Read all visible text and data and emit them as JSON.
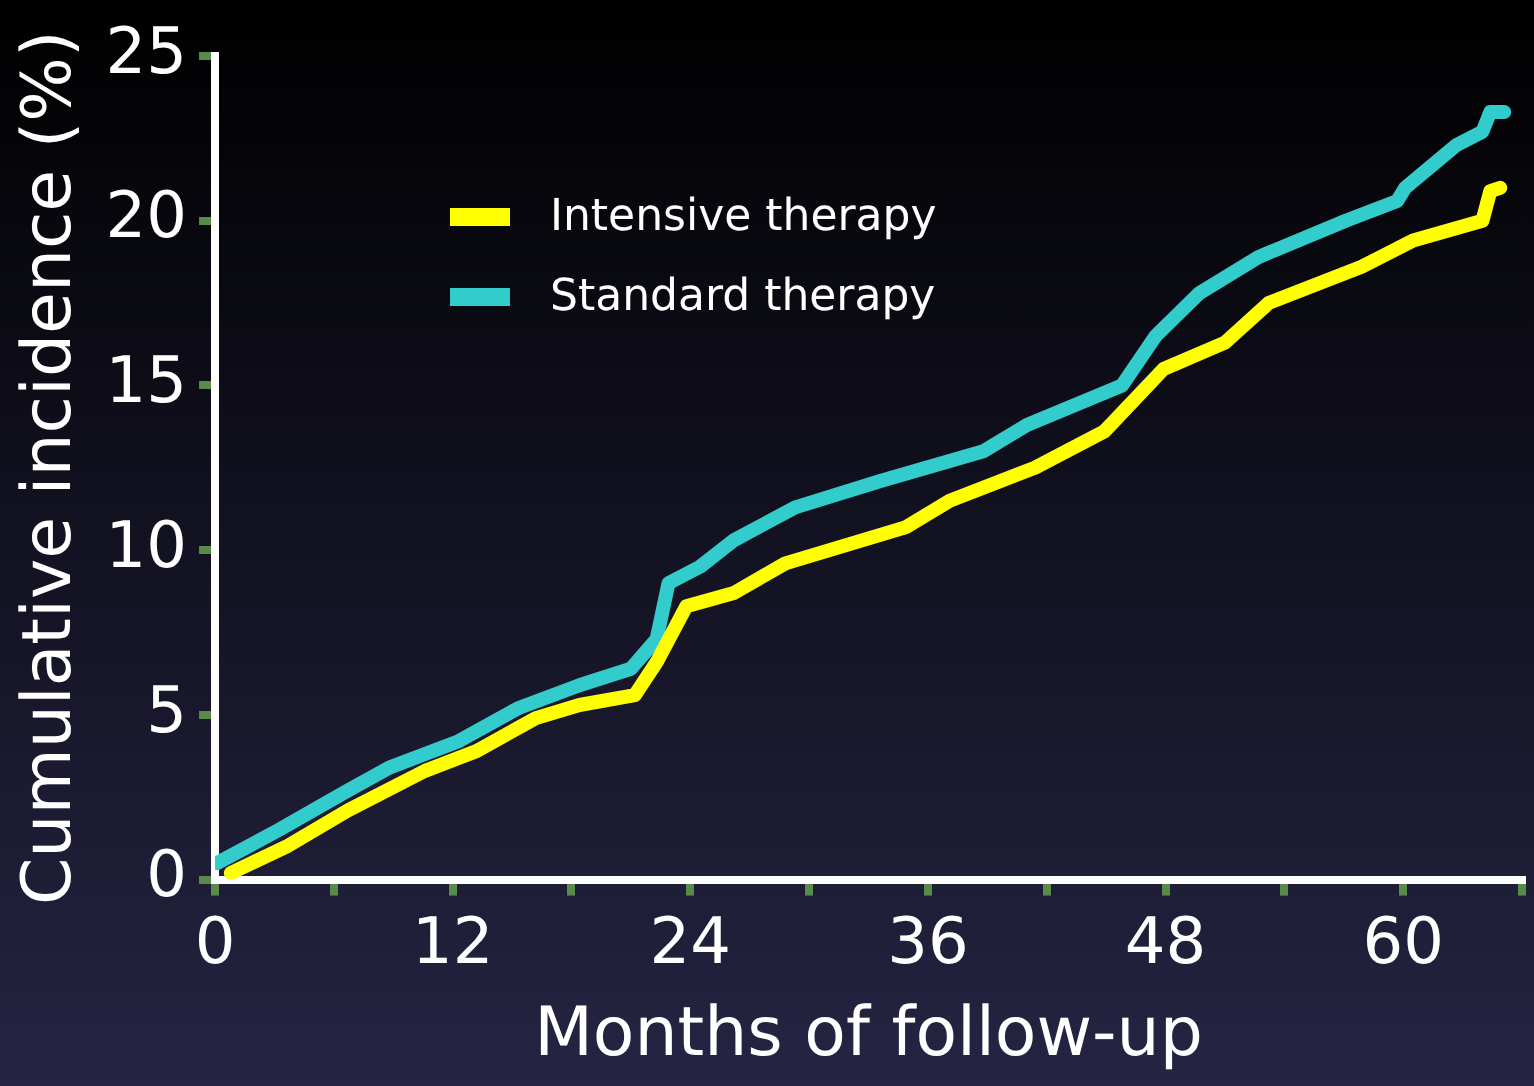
{
  "chart_data": {
    "type": "line",
    "xlabel": "Months of follow-up",
    "ylabel": "Cumulative incidence (%)",
    "xlim": [
      0,
      66
    ],
    "xticks": [
      0,
      {
        "value": 6,
        "label": null
      },
      12,
      {
        "value": 18,
        "label": null
      },
      24,
      {
        "value": 30,
        "label": null
      },
      36,
      {
        "value": 42,
        "label": null
      },
      48,
      {
        "value": 54,
        "label": null
      },
      60,
      {
        "value": 66,
        "label": null
      }
    ],
    "ylim": [
      0,
      25
    ],
    "yticks": [
      0,
      5,
      10,
      15,
      20,
      25
    ],
    "grid": false,
    "legend": "top left",
    "marker": "none",
    "line_style": "solid",
    "series": [
      {
        "name": "Intensive therapy",
        "color": "#ffff00",
        "x": [
          0.8,
          3.6,
          6.7,
          10.6,
          13.2,
          16.2,
          18.4,
          21.2,
          22.3,
          23.8,
          26.2,
          28.8,
          34.9,
          37.1,
          41.4,
          44.9,
          47.9,
          51,
          53.2,
          57.9,
          60.5,
          64,
          64.4,
          64.9
        ],
        "values": [
          0.2,
          1.0,
          2.1,
          3.3,
          3.9,
          4.9,
          5.3,
          5.6,
          6.6,
          8.3,
          8.7,
          9.6,
          10.7,
          11.5,
          12.5,
          13.6,
          15.5,
          16.3,
          17.5,
          18.6,
          19.4,
          20.0,
          20.9,
          21.0
        ]
      },
      {
        "name": "Standard therapy",
        "color": "#33cccc",
        "x": [
          0.1,
          3.2,
          6.7,
          8.8,
          12.3,
          15.3,
          18.4,
          21,
          22.3,
          22.9,
          24.5,
          26.2,
          29.3,
          33.6,
          38.8,
          41,
          45.8,
          47.5,
          49.7,
          52.7,
          57.1,
          59.7,
          60.1,
          62.7,
          64,
          64.4,
          65.1
        ],
        "values": [
          0.5,
          1.5,
          2.7,
          3.4,
          4.2,
          5.2,
          5.9,
          6.4,
          7.3,
          9.0,
          9.5,
          10.3,
          11.3,
          12.1,
          13.0,
          13.8,
          15.0,
          16.5,
          17.8,
          18.9,
          20.0,
          20.6,
          21.0,
          22.3,
          22.7,
          23.3,
          23.3
        ]
      }
    ]
  }
}
